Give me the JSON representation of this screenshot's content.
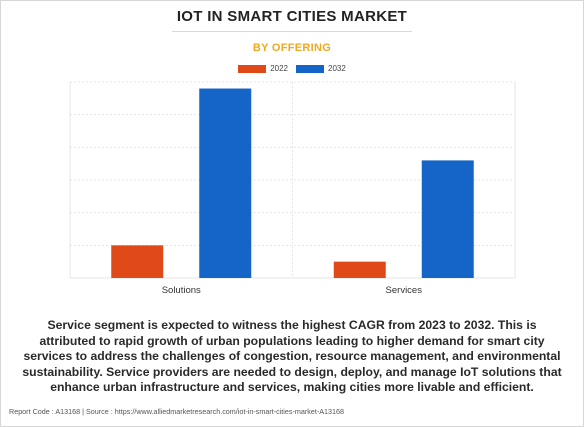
{
  "header": {
    "title": "IOT IN SMART CITIES MARKET",
    "subtitle": "BY OFFERING"
  },
  "legend": [
    {
      "label": "2022",
      "color": "#e04a18"
    },
    {
      "label": "2032",
      "color": "#1565c8"
    }
  ],
  "chart_data": {
    "type": "bar",
    "categories": [
      "Solutions",
      "Services"
    ],
    "series": [
      {
        "name": "2022",
        "color": "#e04a18",
        "values": [
          1.0,
          0.5
        ]
      },
      {
        "name": "2032",
        "color": "#1565c8",
        "values": [
          5.8,
          3.6
        ]
      }
    ],
    "ylim": [
      0,
      6.0
    ],
    "grid": true,
    "legend_position": "top-center"
  },
  "caption": "Service segment is expected to witness the highest CAGR from 2023 to 2032. This is attributed to rapid growth of urban populations leading to higher demand for smart city services to address the challenges of congestion, resource management, and environmental sustainability. Service providers are needed to design, deploy, and manage IoT solutions that enhance urban infrastructure and services, making cities more livable and efficient.",
  "footer": {
    "text": "Report Code : A13168  |  Source : https://www.alliedmarketresearch.com/iot-in-smart-cities-market-A13168"
  }
}
